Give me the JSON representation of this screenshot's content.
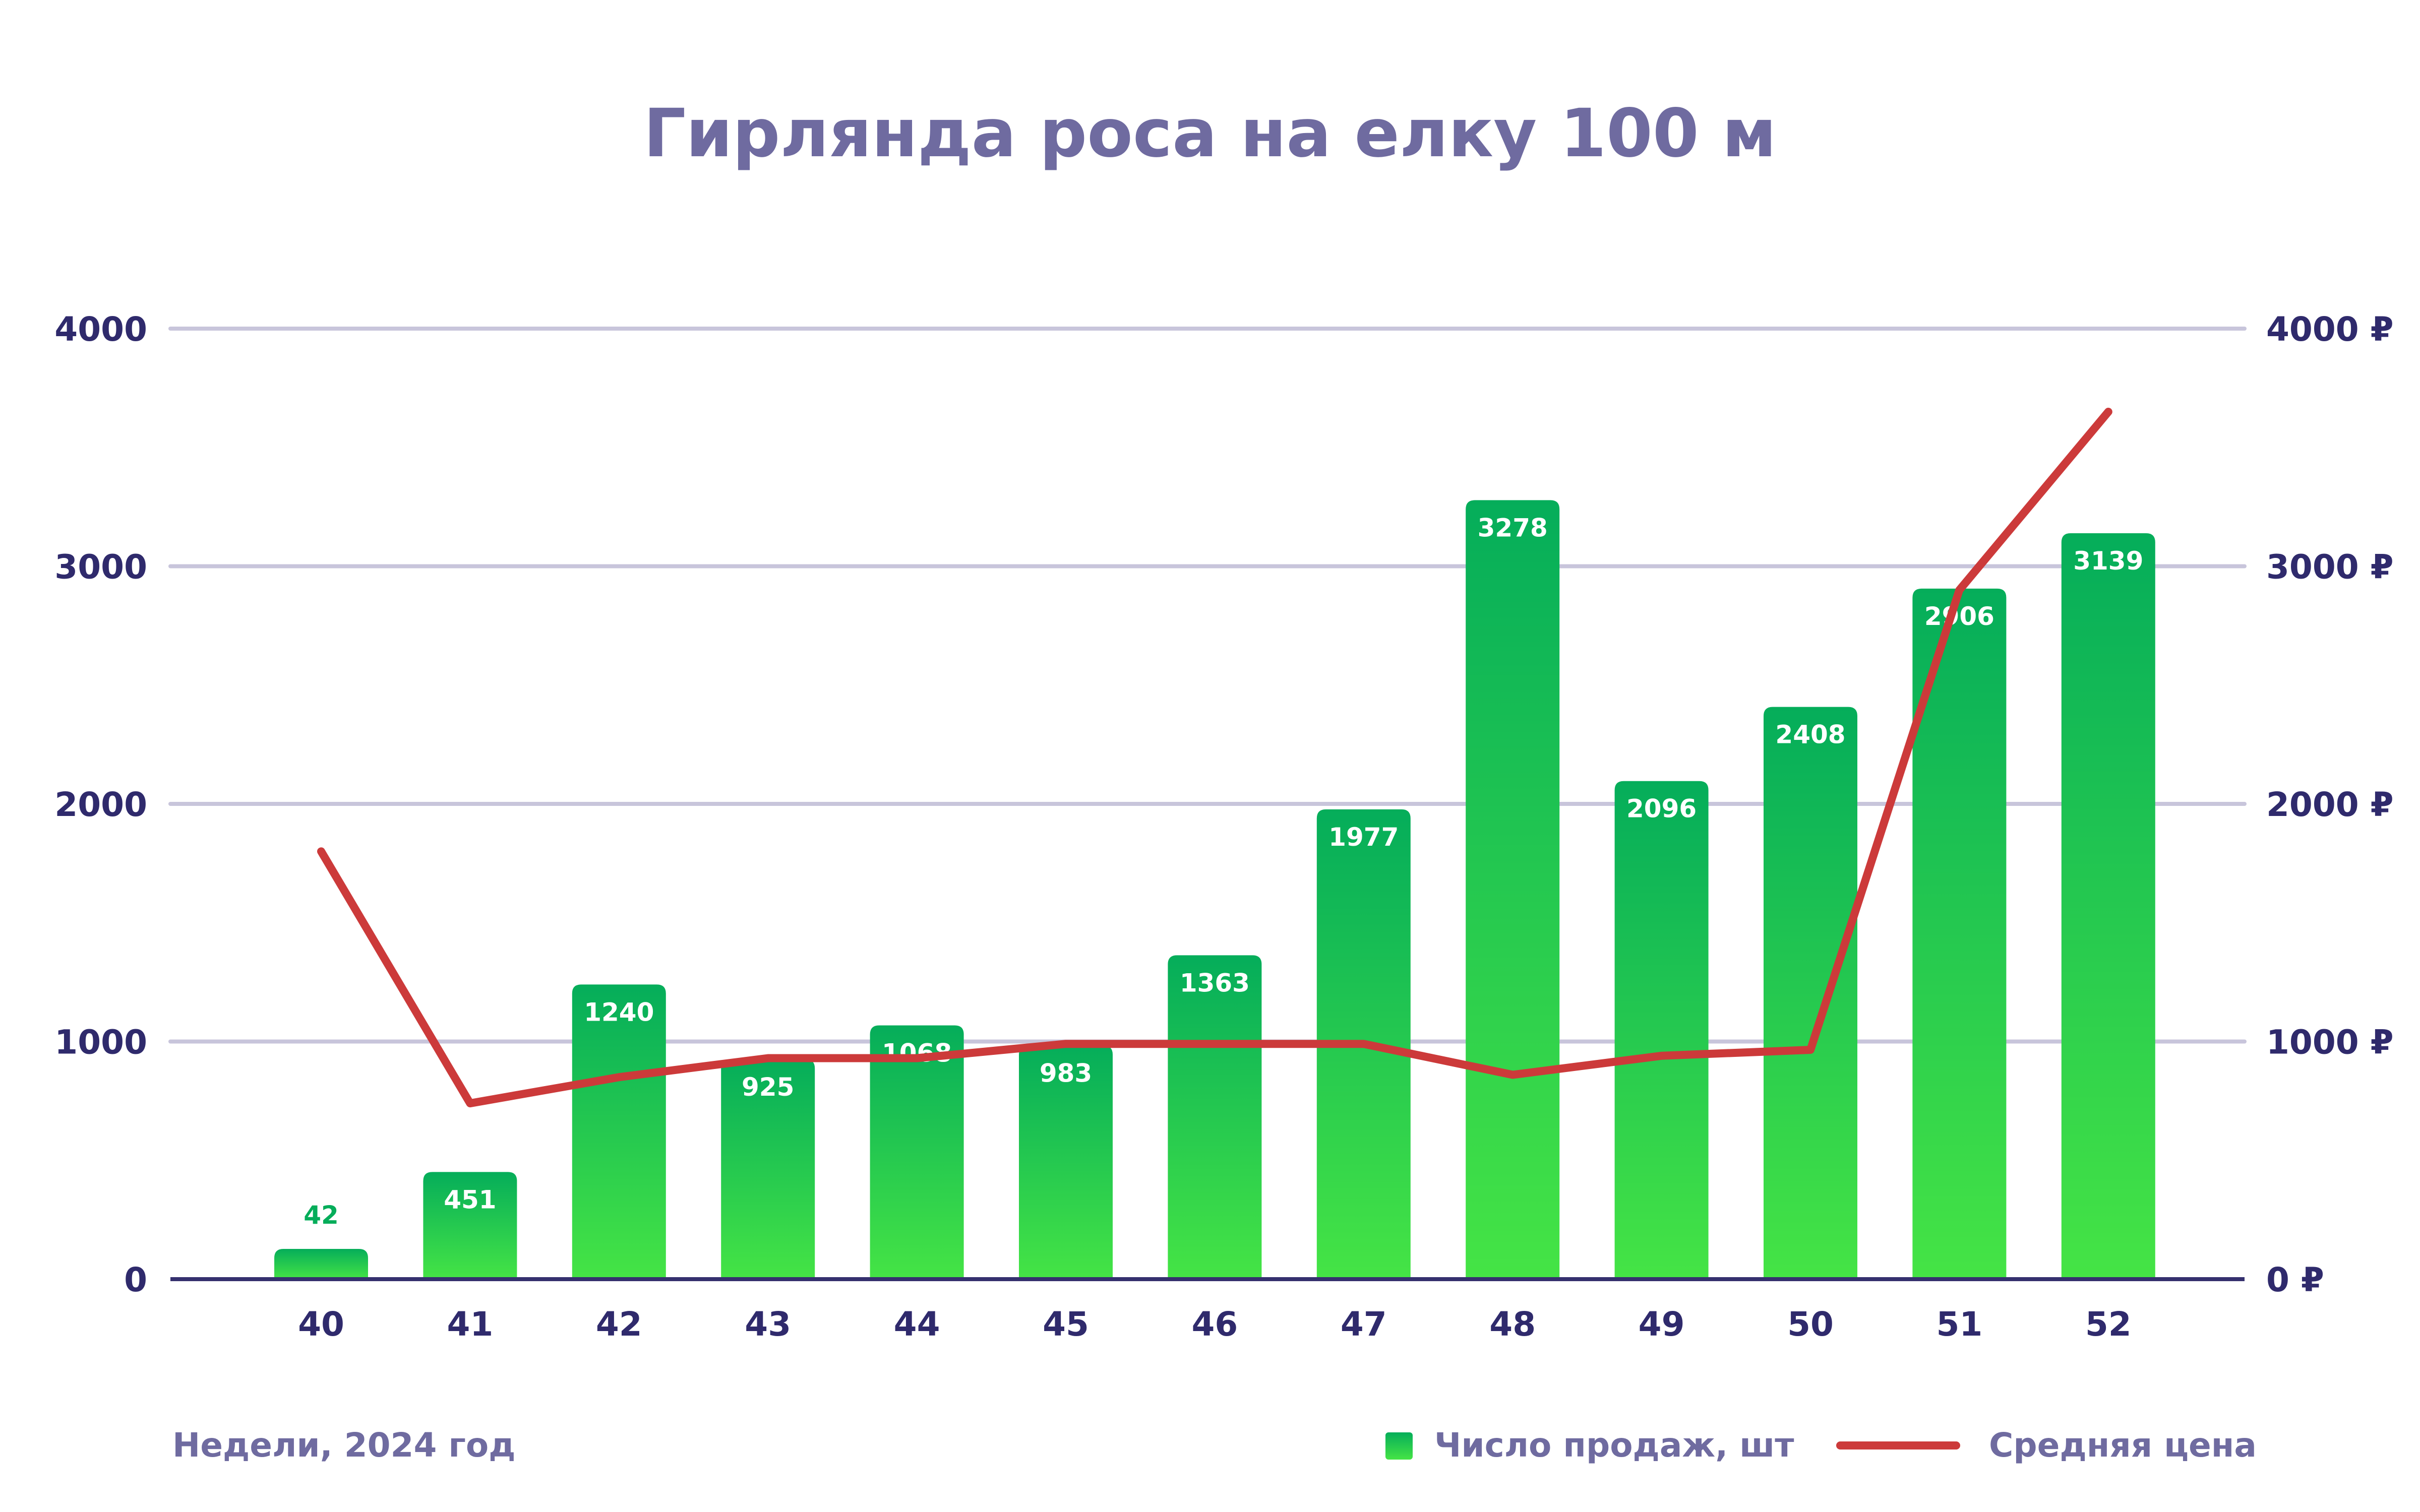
{
  "chart_data": {
    "type": "bar+line",
    "title": "Гирлянда роса на елку 100 м",
    "xlabel": "Недели, 2024 год",
    "categories": [
      "40",
      "41",
      "42",
      "43",
      "44",
      "45",
      "46",
      "47",
      "48",
      "49",
      "50",
      "51",
      "52"
    ],
    "series": [
      {
        "name": "Число продаж, шт",
        "type": "bar",
        "axis": "left",
        "values": [
          42,
          451,
          1240,
          925,
          1068,
          983,
          1363,
          1977,
          3278,
          2096,
          2408,
          2906,
          3139
        ]
      },
      {
        "name": "Средняя цена",
        "type": "line",
        "axis": "right",
        "values": [
          1800,
          740,
          850,
          930,
          930,
          990,
          990,
          990,
          860,
          940,
          965,
          2900,
          3650
        ]
      }
    ],
    "y_left": {
      "range": [
        0,
        4000
      ],
      "ticks": [
        "0",
        "1000",
        "2000",
        "3000",
        "4000"
      ]
    },
    "y_right": {
      "range": [
        0,
        4000
      ],
      "ticks": [
        "0 ₽",
        "1000 ₽",
        "2000 ₽",
        "3000 ₽",
        "4000 ₽"
      ]
    },
    "grid": true,
    "legend": "bottom-right",
    "colors": {
      "bar_top": "#05ad5a",
      "bar_bottom": "#45e445",
      "line": "#cc3a3a",
      "grid": "#c8c5db",
      "axis": "#35306e",
      "title": "#6f6ba0"
    }
  }
}
